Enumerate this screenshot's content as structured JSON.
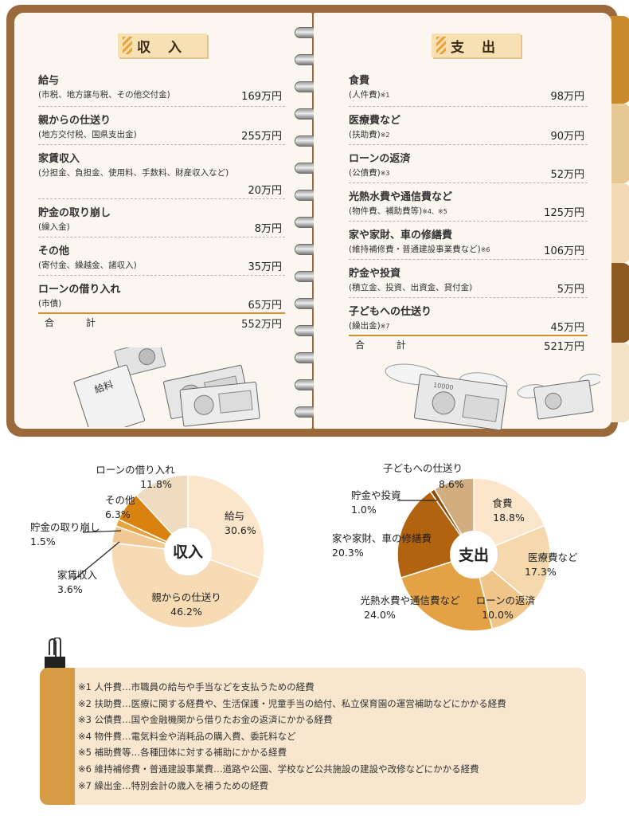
{
  "income": {
    "title": "収 入",
    "rows": [
      {
        "label": "給与",
        "sub": "(市税、地方譲与税、その他交付金)",
        "amount": "169万円"
      },
      {
        "label": "親からの仕送り",
        "sub": "(地方交付税、国県支出金)",
        "amount": "255万円"
      },
      {
        "label": "家賃収入",
        "sub": "(分担金、負担金、使用料、手数料、財産収入など)",
        "amount": "20万円"
      },
      {
        "label": "貯金の取り崩し",
        "sub": "(繰入金)",
        "amount": "8万円"
      },
      {
        "label": "その他",
        "sub": "(寄付金、繰越金、諸収入)",
        "amount": "35万円"
      },
      {
        "label": "ローンの借り入れ",
        "sub": "(市債)",
        "amount": "65万円"
      }
    ],
    "total_label": "合 計",
    "total": "552万円"
  },
  "expense": {
    "title": "支 出",
    "rows": [
      {
        "label": "食費",
        "sub": "(人件費)",
        "note": "※1",
        "amount": "98万円"
      },
      {
        "label": "医療費など",
        "sub": "(扶助費)",
        "note": "※2",
        "amount": "90万円"
      },
      {
        "label": "ローンの返済",
        "sub": "(公債費)",
        "note": "※3",
        "amount": "52万円"
      },
      {
        "label": "光熱水費や通信費など",
        "sub": "(物件費、補助費等)",
        "note": "※4、※5",
        "amount": "125万円"
      },
      {
        "label": "家や家財、車の修繕費",
        "sub": "(維持補修費・普通建設事業費など)",
        "note": "※6",
        "amount": "106万円"
      },
      {
        "label": "貯金や投資",
        "sub": "(積立金、投資、出資金、貸付金)",
        "note": "",
        "amount": "5万円"
      },
      {
        "label": "子どもへの仕送り",
        "sub": "(繰出金)",
        "note": "※7",
        "amount": "45万円"
      }
    ],
    "total_label": "合 計",
    "total": "521万円"
  },
  "illustrations": {
    "envelope_text": "給料",
    "bill_text": "10000"
  },
  "chart_data": [
    {
      "type": "pie",
      "center_label": "収入",
      "slices": [
        {
          "label": "給与",
          "value": 30.6,
          "pct": "30.6%",
          "color": "#fbe6cb"
        },
        {
          "label": "親からの仕送り",
          "value": 46.2,
          "pct": "46.2%",
          "color": "#f6dbb4"
        },
        {
          "label": "家賃収入",
          "value": 3.6,
          "pct": "3.6%",
          "color": "#f1c891"
        },
        {
          "label": "貯金の取り崩し",
          "value": 1.5,
          "pct": "1.5%",
          "color": "#e7a340"
        },
        {
          "label": "その他",
          "value": 6.3,
          "pct": "6.3%",
          "color": "#d9820f"
        },
        {
          "label": "ローンの借り入れ",
          "value": 11.8,
          "pct": "11.8%",
          "color": "#efdcc0"
        }
      ]
    },
    {
      "type": "pie",
      "center_label": "支出",
      "slices": [
        {
          "label": "食費",
          "value": 18.8,
          "pct": "18.8%",
          "color": "#fbe6cb"
        },
        {
          "label": "医療費など",
          "value": 17.3,
          "pct": "17.3%",
          "color": "#f6d8ad"
        },
        {
          "label": "ローンの返済",
          "value": 10.0,
          "pct": "10.0%",
          "color": "#f0c58a"
        },
        {
          "label": "光熱水費や通信費など",
          "value": 24.0,
          "pct": "24.0%",
          "color": "#e4a247"
        },
        {
          "label": "家や家財、車の修繕費",
          "value": 20.3,
          "pct": "20.3%",
          "color": "#b2630f"
        },
        {
          "label": "貯金や投資",
          "value": 1.0,
          "pct": "1.0%",
          "color": "#8e4c08"
        },
        {
          "label": "子どもへの仕送り",
          "value": 8.6,
          "pct": "8.6%",
          "color": "#d2ad7f"
        }
      ]
    }
  ],
  "notes": [
    "※1 人件費…市職員の給与や手当などを支払うための経費",
    "※2 扶助費…医療に関する経費や、生活保護・児童手当の給付、私立保育園の運営補助などにかかる経費",
    "※3 公債費…国や金融機関から借りたお金の返済にかかる経費",
    "※4 物件費…電気料金や消耗品の購入費、委託料など",
    "※5 補助費等…各種団体に対する補助にかかる経費",
    "※6 維持補修費・普通建設事業費…道路や公園、学校など公共施設の建設や改修などにかかる経費",
    "※7 繰出金…特別会計の歳入を補うための経費"
  ]
}
